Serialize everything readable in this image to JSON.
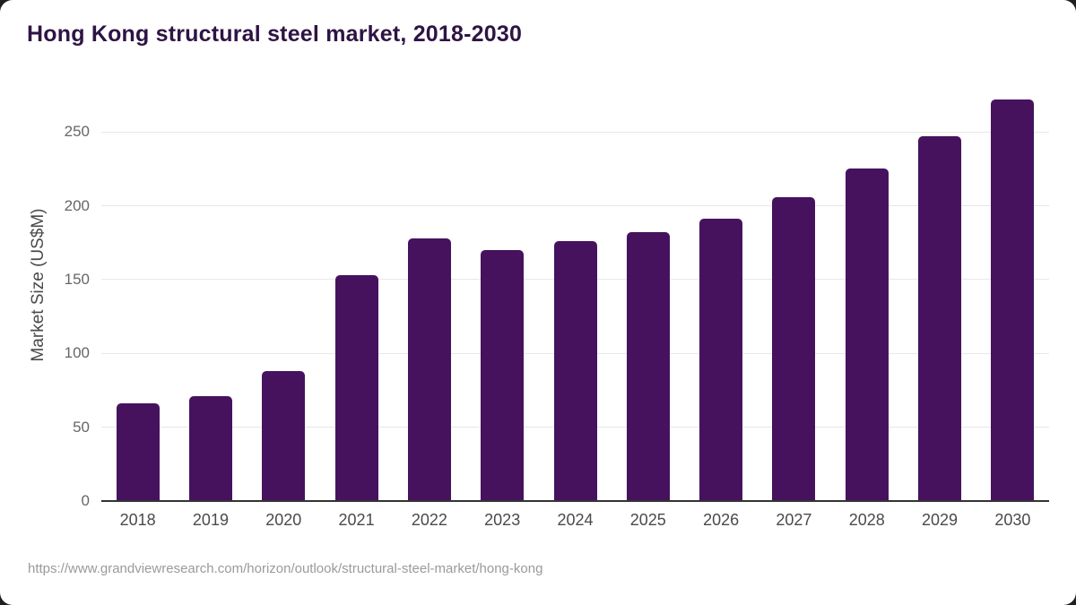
{
  "page": {
    "background_color": "#1f1f1f",
    "card_color": "#ffffff"
  },
  "title": "Hong Kong structural steel market, 2018-2030",
  "source_url": "https://www.grandviewresearch.com/horizon/outlook/structural-steel-market/hong-kong",
  "colors": {
    "bar": "#46125e",
    "title_text": "#2e1445",
    "axis_text": "#4a4a4a",
    "tick_text": "#666666",
    "gridline": "#e7e7e7",
    "axis_line": "#333333",
    "source_text": "#9a9a9a"
  },
  "chart_data": {
    "type": "bar",
    "title": "Hong Kong structural steel market, 2018-2030",
    "categories": [
      "2018",
      "2019",
      "2020",
      "2021",
      "2022",
      "2023",
      "2024",
      "2025",
      "2026",
      "2027",
      "2028",
      "2029",
      "2030"
    ],
    "values": [
      66,
      71,
      88,
      153,
      178,
      170,
      176,
      182,
      191,
      206,
      225,
      247,
      272
    ],
    "xlabel": "",
    "ylabel": "Market Size (US$M)",
    "ylim": [
      0,
      279
    ],
    "yticks": [
      0,
      50,
      100,
      150,
      200,
      250
    ],
    "grid": true,
    "legend": false,
    "bar_color": "#46125e"
  }
}
